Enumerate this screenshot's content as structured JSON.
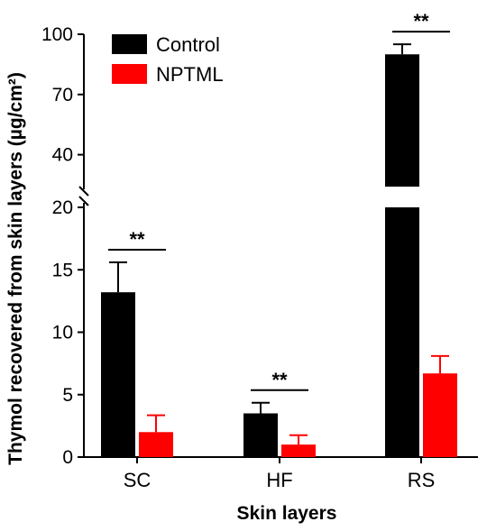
{
  "chart_data": {
    "type": "bar",
    "title": "",
    "xlabel": "Skin layers",
    "ylabel": "Thymol recovered from skin layers (µg/cm²)",
    "categories": [
      "SC",
      "HF",
      "RS"
    ],
    "series": [
      {
        "name": "Control",
        "color": "#000000",
        "values": [
          13.2,
          3.5,
          90.0
        ],
        "errors": [
          2.4,
          0.85,
          5.0
        ]
      },
      {
        "name": "NPTML",
        "color": "#ff0000",
        "values": [
          2.0,
          1.0,
          6.7
        ],
        "errors": [
          1.35,
          0.75,
          1.4
        ]
      }
    ],
    "y_axis": {
      "broken": true,
      "lower_range": [
        0,
        20
      ],
      "lower_ticks": [
        "0",
        "5",
        "10",
        "15",
        "20"
      ],
      "upper_range": [
        25,
        100
      ],
      "upper_ticks": [
        "40",
        "70",
        "100"
      ]
    },
    "significance": [
      {
        "category": "SC",
        "label": "**"
      },
      {
        "category": "HF",
        "label": "**"
      },
      {
        "category": "RS",
        "label": "**"
      }
    ],
    "legend_position": "top-left",
    "grid": false
  }
}
